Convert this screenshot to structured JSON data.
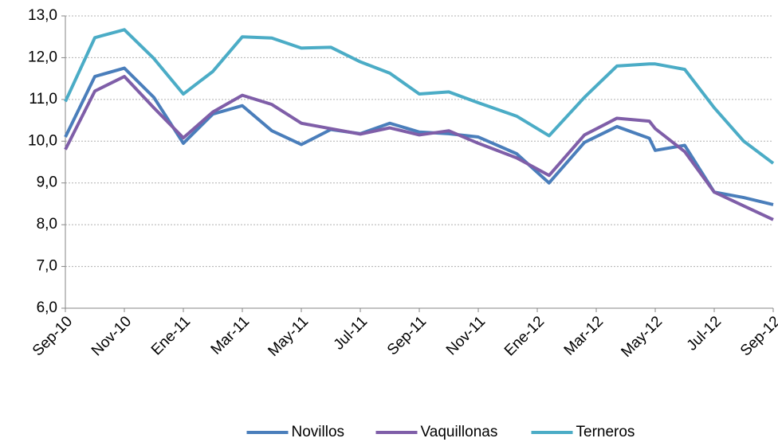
{
  "chart_data": {
    "type": "line",
    "x": [
      0,
      1,
      2,
      3,
      4,
      5,
      6,
      7,
      8,
      9,
      10,
      11,
      12,
      13,
      14,
      15.3,
      16.4,
      17.6,
      18.7,
      19.8,
      20,
      21,
      22,
      23,
      24
    ],
    "series": [
      {
        "name": "Novillos",
        "color": "#4a7ebb",
        "values": [
          10.1,
          11.55,
          11.75,
          11.05,
          9.95,
          10.65,
          10.85,
          10.25,
          9.92,
          10.28,
          10.18,
          10.43,
          10.22,
          10.18,
          10.1,
          9.7,
          9.0,
          9.97,
          10.35,
          10.07,
          9.78,
          9.9,
          8.78,
          8.65,
          8.48
        ]
      },
      {
        "name": "Vaquillonas",
        "color": "#7f5ea8",
        "values": [
          9.8,
          11.2,
          11.55,
          10.8,
          10.08,
          10.7,
          11.1,
          10.88,
          10.43,
          10.3,
          10.17,
          10.32,
          10.15,
          10.25,
          9.95,
          9.6,
          9.18,
          10.15,
          10.55,
          10.48,
          10.3,
          9.75,
          8.78,
          8.45,
          8.12
        ]
      },
      {
        "name": "Terneros",
        "color": "#4bacc6",
        "values": [
          10.95,
          12.48,
          12.67,
          11.98,
          11.13,
          11.67,
          12.5,
          12.47,
          12.23,
          12.25,
          11.9,
          11.63,
          11.13,
          11.18,
          10.92,
          10.6,
          10.13,
          11.05,
          11.8,
          11.85,
          11.85,
          11.72,
          10.8,
          10.0,
          9.47
        ]
      }
    ],
    "xlim": [
      0,
      24
    ],
    "xticks": [
      {
        "value": 0,
        "label": "Sep-10"
      },
      {
        "value": 2,
        "label": "Nov-10"
      },
      {
        "value": 4,
        "label": "Ene-11"
      },
      {
        "value": 6,
        "label": "Mar-11"
      },
      {
        "value": 8,
        "label": "May-11"
      },
      {
        "value": 10,
        "label": "Jul-11"
      },
      {
        "value": 12,
        "label": "Sep-11"
      },
      {
        "value": 14,
        "label": "Nov-11"
      },
      {
        "value": 16,
        "label": "Ene-12"
      },
      {
        "value": 18,
        "label": "Mar-12"
      },
      {
        "value": 20,
        "label": "May-12"
      },
      {
        "value": 22,
        "label": "Jul-12"
      },
      {
        "value": 24,
        "label": "Sep-12"
      }
    ],
    "ylim": [
      6,
      13
    ],
    "yticks": [
      {
        "value": 6,
        "label": "6,0"
      },
      {
        "value": 7,
        "label": "7,0"
      },
      {
        "value": 8,
        "label": "8,0"
      },
      {
        "value": 9,
        "label": "9,0"
      },
      {
        "value": 10,
        "label": "10,0"
      },
      {
        "value": 11,
        "label": "11,0"
      },
      {
        "value": 12,
        "label": "12,0"
      },
      {
        "value": 13,
        "label": "13,0"
      }
    ],
    "grid": true,
    "legend": "bottom"
  }
}
